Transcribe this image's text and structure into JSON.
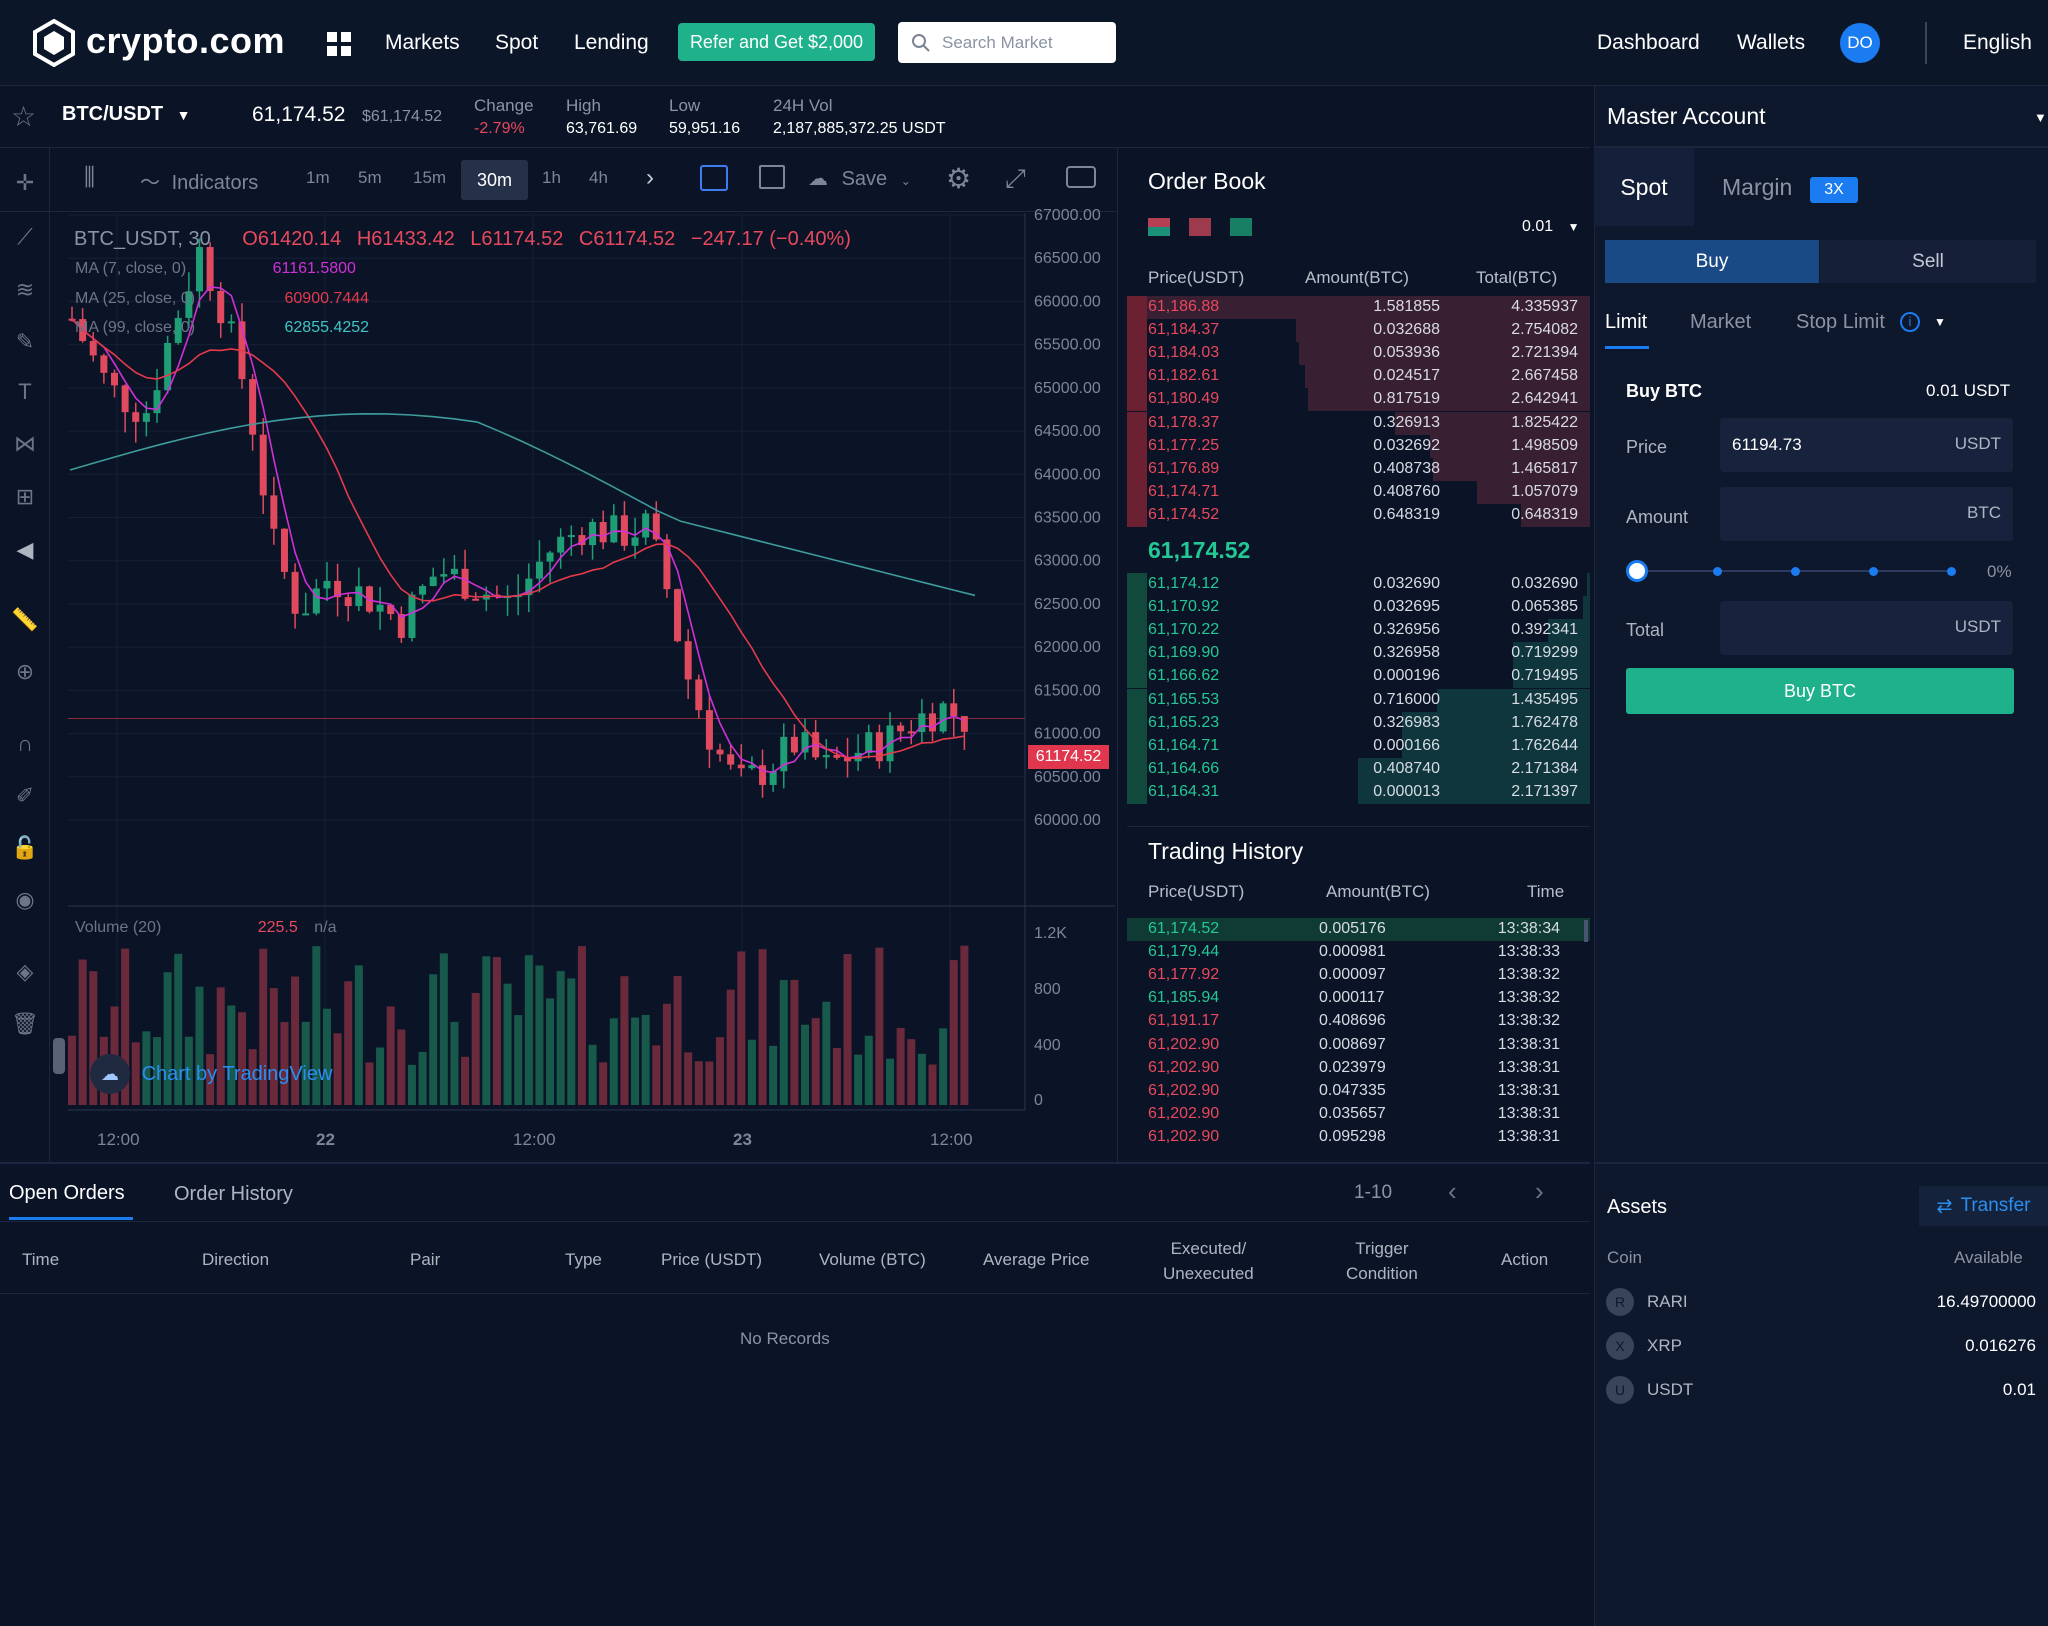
{
  "header": {
    "logo": "crypto.com",
    "nav": [
      "Markets",
      "Spot",
      "Lending"
    ],
    "refer_label": "Refer and Get $2,000",
    "search_placeholder": "Search Market",
    "right_nav": [
      "Dashboard",
      "Wallets"
    ],
    "avatar_initials": "DO",
    "language": "English"
  },
  "ticker": {
    "pair": "BTC/USDT",
    "last": "61,174.52",
    "last_usd": "$61,174.52",
    "change_label": "Change",
    "change": "-2.79%",
    "high_label": "High",
    "high": "63,761.69",
    "low_label": "Low",
    "low": "59,951.16",
    "vol_label": "24H Vol",
    "vol": "2,187,885,372.25 USDT"
  },
  "chart_toolbar": {
    "indicators": "Indicators",
    "timeframes": [
      "1m",
      "5m",
      "15m",
      "30m",
      "1h",
      "4h"
    ],
    "active_timeframe": "30m",
    "save": "Save"
  },
  "chart_legend": {
    "symbol": "BTC_USDT, 30",
    "open": "O61420.14",
    "high": "H61433.42",
    "low": "L61174.52",
    "close": "C61174.52",
    "change": "−247.17 (−0.40%)",
    "ma7_label": "MA (7, close, 0)",
    "ma7_value": "61161.5800",
    "ma25_label": "MA (25, close, 0)",
    "ma25_value": "60900.7444",
    "ma99_label": "MA (99, close, 0)",
    "ma99_value": "62855.4252",
    "volume_label": "Volume (20)",
    "volume_value": "225.5",
    "volume_na": "n/a",
    "price_tag": "61174.52",
    "attribution": "Chart by TradingView"
  },
  "chart_data": {
    "type": "candlestick",
    "y_ticks": [
      "67000.00",
      "66500.00",
      "66000.00",
      "65500.00",
      "65000.00",
      "64500.00",
      "64000.00",
      "63500.00",
      "63000.00",
      "62500.00",
      "62000.00",
      "61500.00",
      "61000.00",
      "60500.00",
      "60000.00"
    ],
    "ylim": [
      60000,
      67000
    ],
    "volume_ticks": [
      "1.2K",
      "800",
      "400",
      "0"
    ],
    "x_ticks": [
      "12:00",
      "22",
      "12:00",
      "23",
      "12:00"
    ],
    "ma_colors": {
      "ma7": "#d030d8",
      "ma25": "#e43a4c",
      "ma99": "#3e9c9c"
    },
    "up_color": "#1f9e76",
    "down_color": "#e04a5e"
  },
  "order_book": {
    "title": "Order Book",
    "precision": "0.01",
    "headers": [
      "Price(USDT)",
      "Amount(BTC)",
      "Total(BTC)"
    ],
    "asks": [
      [
        "61,186.88",
        "1.581855",
        "4.335937"
      ],
      [
        "61,184.37",
        "0.032688",
        "2.754082"
      ],
      [
        "61,184.03",
        "0.053936",
        "2.721394"
      ],
      [
        "61,182.61",
        "0.024517",
        "2.667458"
      ],
      [
        "61,180.49",
        "0.817519",
        "2.642941"
      ],
      [
        "61,178.37",
        "0.326913",
        "1.825422"
      ],
      [
        "61,177.25",
        "0.032692",
        "1.498509"
      ],
      [
        "61,176.89",
        "0.408738",
        "1.465817"
      ],
      [
        "61,174.71",
        "0.408760",
        "1.057079"
      ],
      [
        "61,174.52",
        "0.648319",
        "0.648319"
      ]
    ],
    "mid": "61,174.52",
    "bids": [
      [
        "61,174.12",
        "0.032690",
        "0.032690"
      ],
      [
        "61,170.92",
        "0.032695",
        "0.065385"
      ],
      [
        "61,170.22",
        "0.326956",
        "0.392341"
      ],
      [
        "61,169.90",
        "0.326958",
        "0.719299"
      ],
      [
        "61,166.62",
        "0.000196",
        "0.719495"
      ],
      [
        "61,165.53",
        "0.716000",
        "1.435495"
      ],
      [
        "61,165.23",
        "0.326983",
        "1.762478"
      ],
      [
        "61,164.71",
        "0.000166",
        "1.762644"
      ],
      [
        "61,164.66",
        "0.408740",
        "2.171384"
      ],
      [
        "61,164.31",
        "0.000013",
        "2.171397"
      ]
    ]
  },
  "trading_history": {
    "title": "Trading History",
    "headers": [
      "Price(USDT)",
      "Amount(BTC)",
      "Time"
    ],
    "rows": [
      [
        "61,174.52",
        "0.005176",
        "13:38:34",
        "buy"
      ],
      [
        "61,179.44",
        "0.000981",
        "13:38:33",
        "buy"
      ],
      [
        "61,177.92",
        "0.000097",
        "13:38:32",
        "sell"
      ],
      [
        "61,185.94",
        "0.000117",
        "13:38:32",
        "buy"
      ],
      [
        "61,191.17",
        "0.408696",
        "13:38:32",
        "sell"
      ],
      [
        "61,202.90",
        "0.008697",
        "13:38:31",
        "sell"
      ],
      [
        "61,202.90",
        "0.023979",
        "13:38:31",
        "sell"
      ],
      [
        "61,202.90",
        "0.047335",
        "13:38:31",
        "sell"
      ],
      [
        "61,202.90",
        "0.035657",
        "13:38:31",
        "sell"
      ],
      [
        "61,202.90",
        "0.095298",
        "13:38:31",
        "sell"
      ]
    ]
  },
  "trade_panel": {
    "account": "Master Account",
    "spot": "Spot",
    "margin": "Margin",
    "margin_badge": "3X",
    "buy": "Buy",
    "sell": "Sell",
    "order_types": [
      "Limit",
      "Market",
      "Stop Limit"
    ],
    "buy_title": "Buy BTC",
    "balance": "0.01 USDT",
    "price_label": "Price",
    "price_value": "61194.73",
    "price_unit": "USDT",
    "amount_label": "Amount",
    "amount_unit": "BTC",
    "slider_pct": "0%",
    "total_label": "Total",
    "total_unit": "USDT",
    "submit": "Buy BTC"
  },
  "orders": {
    "tabs": [
      "Open Orders",
      "Order History"
    ],
    "pagination": "1-10",
    "headers": [
      "Time",
      "Direction",
      "Pair",
      "Type",
      "Price (USDT)",
      "Volume (BTC)",
      "Average Price",
      "Executed/\nUnexecuted",
      "Trigger\nCondition",
      "Action"
    ],
    "empty": "No Records"
  },
  "assets": {
    "title": "Assets",
    "transfer": "Transfer",
    "coin_header": "Coin",
    "available_header": "Available",
    "rows": [
      {
        "coin": "RARI",
        "available": "16.49700000",
        "icon": "rari-icon"
      },
      {
        "coin": "XRP",
        "available": "0.016276",
        "icon": "xrp-icon"
      },
      {
        "coin": "USDT",
        "available": "0.01",
        "icon": "usdt-icon"
      }
    ]
  }
}
